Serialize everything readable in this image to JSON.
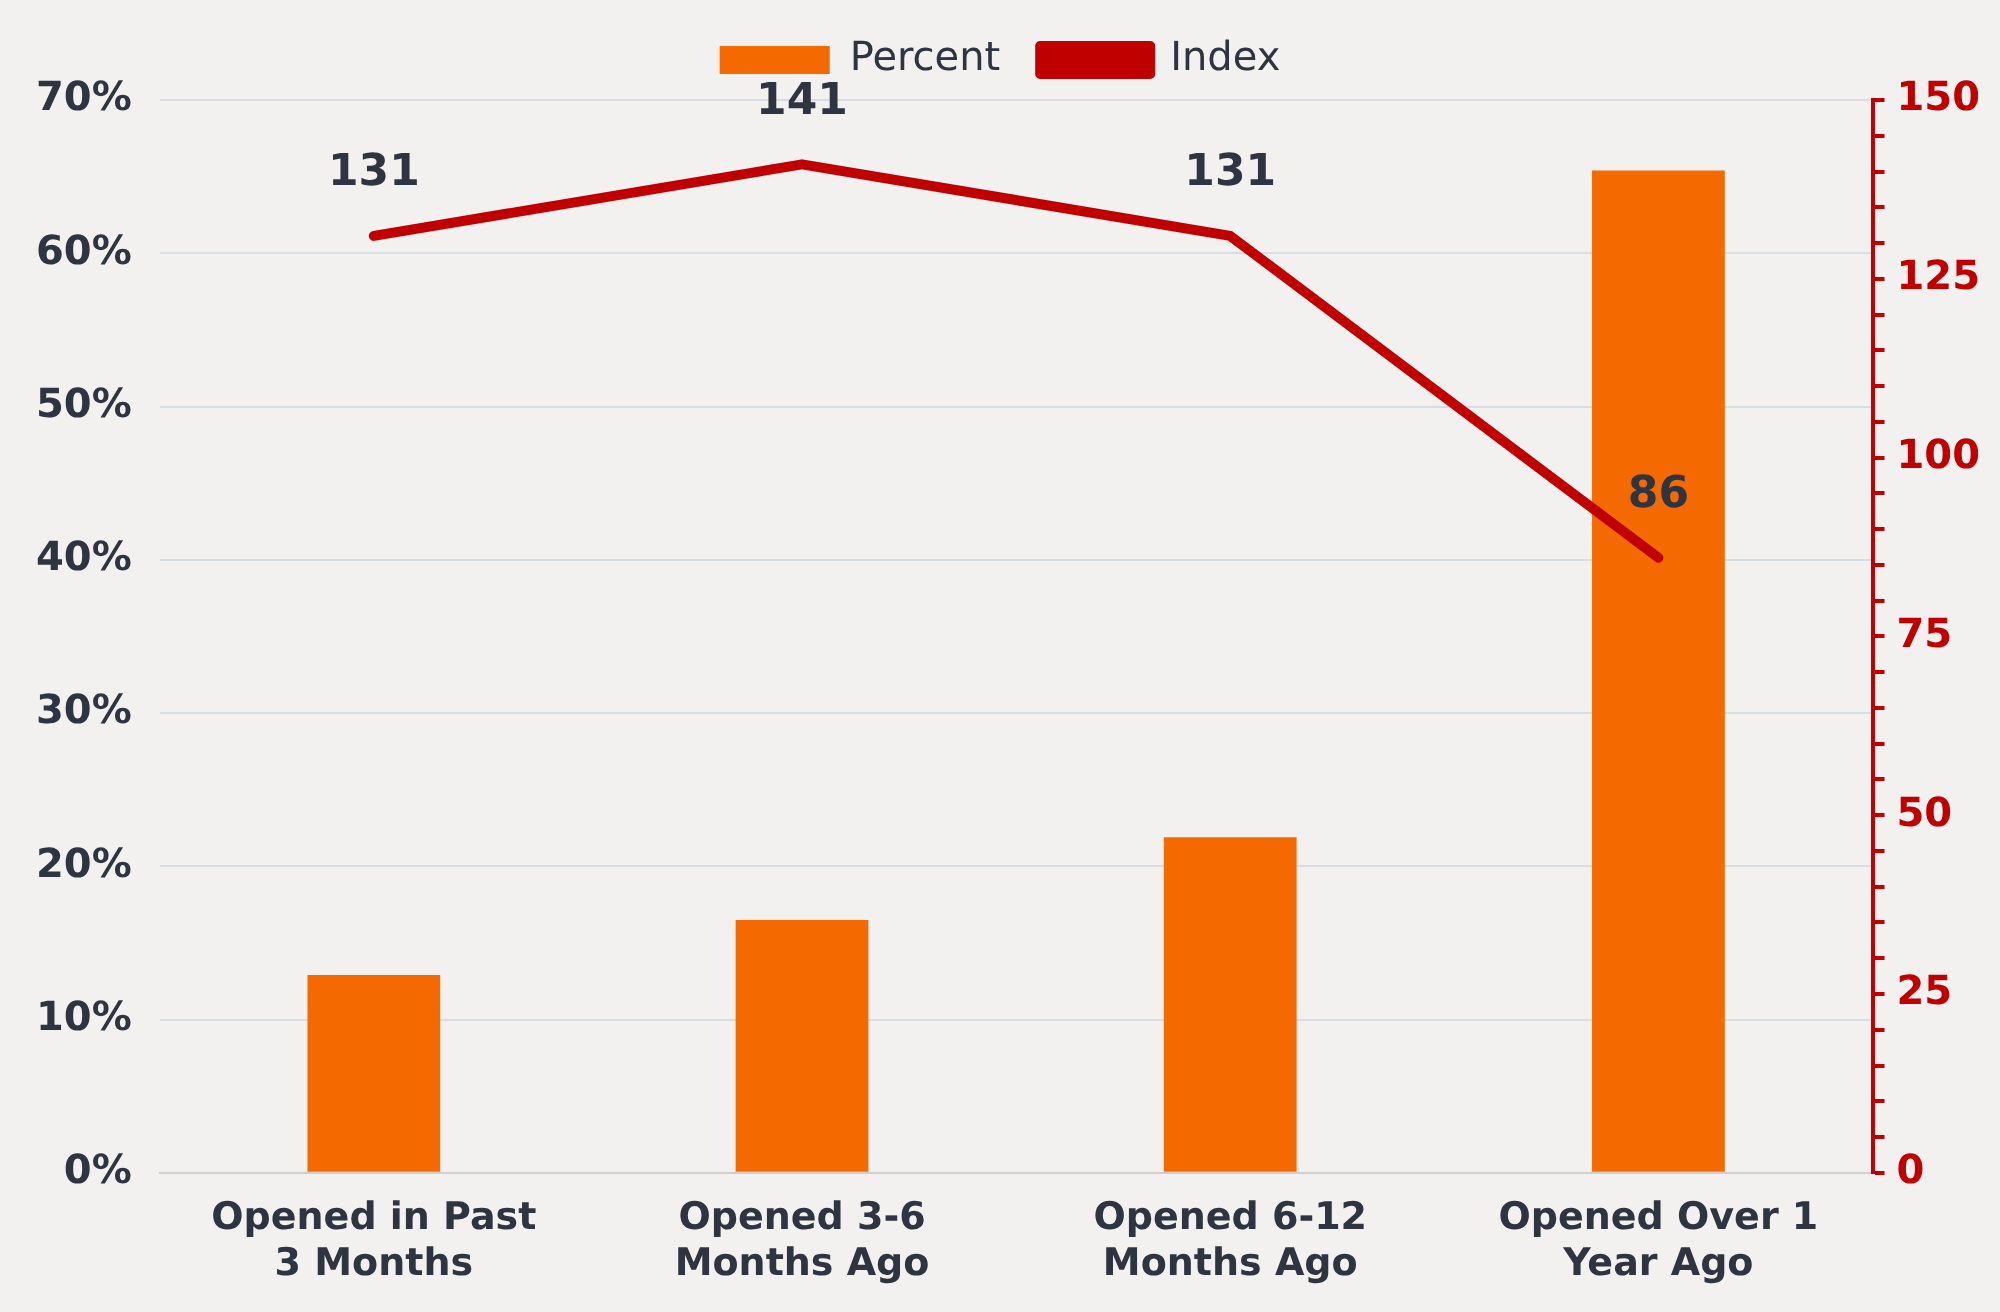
{
  "chart_data": {
    "type": "bar",
    "categories": [
      "Opened in Past 3 Months",
      "Opened 3-6 Months Ago",
      "Opened 6-12 Months Ago",
      "Opened Over 1 Year Ago"
    ],
    "series": [
      {
        "name": "Percent",
        "color": "#f56a00",
        "values": [
          12.9,
          16.5,
          21.9,
          65.4
        ]
      },
      {
        "name": "Index",
        "type": "line",
        "axis": "y2",
        "color": "#c00000",
        "values": [
          131,
          141,
          131,
          86
        ],
        "value_labels": [
          "131",
          "141",
          "131",
          "86"
        ]
      }
    ],
    "ylim": [
      0,
      70
    ],
    "yticks": [
      {
        "value": 0,
        "label": "0%"
      },
      {
        "value": 10,
        "label": "10%"
      },
      {
        "value": 20,
        "label": "20%"
      },
      {
        "value": 30,
        "label": "30%"
      },
      {
        "value": 40,
        "label": "40%"
      },
      {
        "value": 50,
        "label": "50%"
      },
      {
        "value": 60,
        "label": "60%"
      },
      {
        "value": 70,
        "label": "70%"
      }
    ],
    "y2lim": [
      0,
      150
    ],
    "y2ticks": [
      0,
      {
        "value": 5,
        "label": null
      },
      {
        "value": 10,
        "label": null
      },
      {
        "value": 15,
        "label": null
      },
      {
        "value": 20,
        "label": null
      },
      25,
      {
        "value": 30,
        "label": null
      },
      {
        "value": 35,
        "label": null
      },
      {
        "value": 40,
        "label": null
      },
      {
        "value": 45,
        "label": null
      },
      50,
      {
        "value": 55,
        "label": null
      },
      {
        "value": 60,
        "label": null
      },
      {
        "value": 65,
        "label": null
      },
      {
        "value": 70,
        "label": null
      },
      75,
      {
        "value": 80,
        "label": null
      },
      {
        "value": 85,
        "label": null
      },
      {
        "value": 90,
        "label": null
      },
      {
        "value": 95,
        "label": null
      },
      100,
      {
        "value": 105,
        "label": null
      },
      {
        "value": 110,
        "label": null
      },
      {
        "value": 115,
        "label": null
      },
      {
        "value": 120,
        "label": null
      },
      125,
      {
        "value": 130,
        "label": null
      },
      {
        "value": 135,
        "label": null
      },
      {
        "value": 140,
        "label": null
      },
      {
        "value": 145,
        "label": null
      },
      150
    ],
    "grid": "y",
    "legend": "top"
  }
}
